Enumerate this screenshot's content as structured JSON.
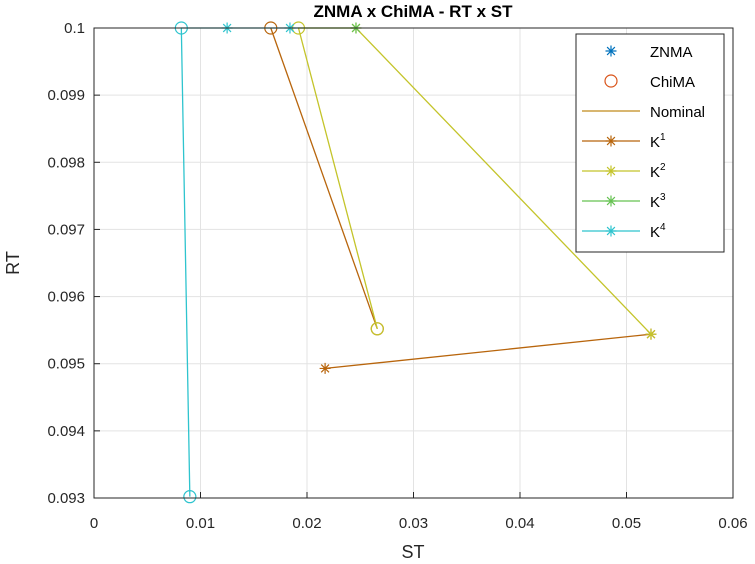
{
  "chart_data": {
    "type": "line",
    "title": "ZNMA x ChiMA - RT  x ST",
    "xlabel": "ST",
    "ylabel": "RT",
    "xlim": [
      0,
      0.06
    ],
    "ylim": [
      0.093,
      0.1
    ],
    "x_ticks": [
      0,
      0.01,
      0.02,
      0.03,
      0.04,
      0.05,
      0.06
    ],
    "x_tick_labels": [
      "0",
      "0.01",
      "0.02",
      "0.03",
      "0.04",
      "0.05",
      "0.06"
    ],
    "y_ticks": [
      0.093,
      0.094,
      0.095,
      0.096,
      0.097,
      0.098,
      0.099,
      0.1
    ],
    "y_tick_labels": [
      "0.093",
      "0.094",
      "0.095",
      "0.096",
      "0.097",
      "0.098",
      "0.099",
      "0.1"
    ],
    "grid": true,
    "legend_position": "top-right",
    "legend": [
      {
        "label": "ZNMA",
        "sup": "",
        "marker": "asterisk",
        "line": false,
        "color": "#0072BD"
      },
      {
        "label": "ChiMA",
        "sup": "",
        "marker": "circle",
        "line": false,
        "color": "#D95319"
      },
      {
        "label": "Nominal",
        "sup": "",
        "marker": "none",
        "line": true,
        "color": "#C08A1A"
      },
      {
        "label": "K",
        "sup": "1",
        "marker": "asterisk",
        "line": true,
        "color": "#B8650C"
      },
      {
        "label": "K",
        "sup": "2",
        "marker": "asterisk",
        "line": true,
        "color": "#C4C42A"
      },
      {
        "label": "K",
        "sup": "3",
        "marker": "asterisk",
        "line": true,
        "color": "#66C252"
      },
      {
        "label": "K",
        "sup": "4",
        "marker": "asterisk",
        "line": true,
        "color": "#2EC4CE"
      }
    ],
    "series": [
      {
        "name": "K1",
        "color": "#B8650C",
        "x": [
          0.0217,
          0.0523
        ],
        "y": [
          0.09493,
          0.09544
        ],
        "markers": [
          "asterisk",
          "asterisk"
        ]
      },
      {
        "name": "K1",
        "color": "#B8650C",
        "x": [
          0.0166,
          0.0266
        ],
        "y": [
          0.1,
          0.09552
        ],
        "markers": [
          "circle",
          "circle"
        ]
      },
      {
        "name": "K2",
        "color": "#C4C42A",
        "x": [
          0.0523,
          0.0246,
          0.0192,
          0.0266
        ],
        "y": [
          0.09544,
          0.1,
          0.1,
          0.09552
        ],
        "markers": [
          "asterisk",
          "asterisk",
          "circle",
          "circle"
        ]
      },
      {
        "name": "K3",
        "color": "#66C252",
        "x": [
          0.0192,
          0.0246
        ],
        "y": [
          0.1,
          0.1
        ],
        "markers": [
          "none",
          "asterisk"
        ]
      },
      {
        "name": "K4",
        "color": "#2EC4CE",
        "x": [
          0.009,
          0.0082,
          0.0125,
          0.0184,
          0.0192
        ],
        "y": [
          0.09302,
          0.1,
          0.1,
          0.1,
          0.1
        ],
        "markers": [
          "circle",
          "circle",
          "asterisk",
          "asterisk",
          "none"
        ]
      }
    ]
  }
}
